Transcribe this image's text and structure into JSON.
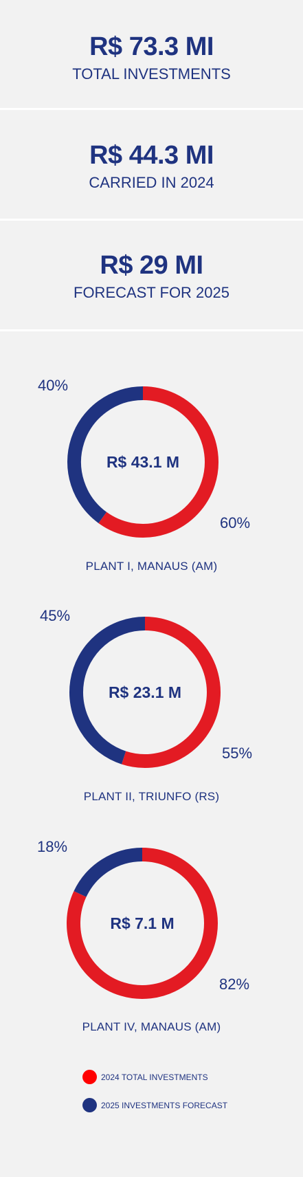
{
  "stats": [
    {
      "value": "R$ 73.3 MI",
      "label": "TOTAL INVESTMENTS"
    },
    {
      "value": "R$ 44.3 MI",
      "label": "CARRIED IN 2024"
    },
    {
      "value": "R$ 29 MI",
      "label": "FORECAST FOR 2025"
    }
  ],
  "colors": {
    "red": "#e31b23",
    "navy": "#1f3380",
    "background": "#f2f2f2",
    "legend_red": "#ff0000"
  },
  "chart_data": [
    {
      "type": "pie",
      "center_label": "R$ 43.1 M",
      "title": "PLANT I, MANAUS (AM)",
      "slices": [
        {
          "name": "2024 TOTAL INVESTMENTS",
          "value": 60,
          "label": "60%"
        },
        {
          "name": "2025 INVESTMENTS FORECAST",
          "value": 40,
          "label": "40%"
        }
      ]
    },
    {
      "type": "pie",
      "center_label": "R$ 23.1 M",
      "title": "PLANT II, TRIUNFO (RS)",
      "slices": [
        {
          "name": "2024 TOTAL INVESTMENTS",
          "value": 55,
          "label": "55%"
        },
        {
          "name": "2025 INVESTMENTS FORECAST",
          "value": 45,
          "label": "45%"
        }
      ]
    },
    {
      "type": "pie",
      "center_label": "R$ 7.1 M",
      "title": "PLANT IV, MANAUS (AM)",
      "slices": [
        {
          "name": "2024 TOTAL INVESTMENTS",
          "value": 82,
          "label": "82%"
        },
        {
          "name": "2025 INVESTMENTS FORECAST",
          "value": 18,
          "label": "18%"
        }
      ]
    }
  ],
  "legend": [
    {
      "label": "2024 TOTAL INVESTMENTS"
    },
    {
      "label": "2025 INVESTMENTS FORECAST"
    }
  ]
}
